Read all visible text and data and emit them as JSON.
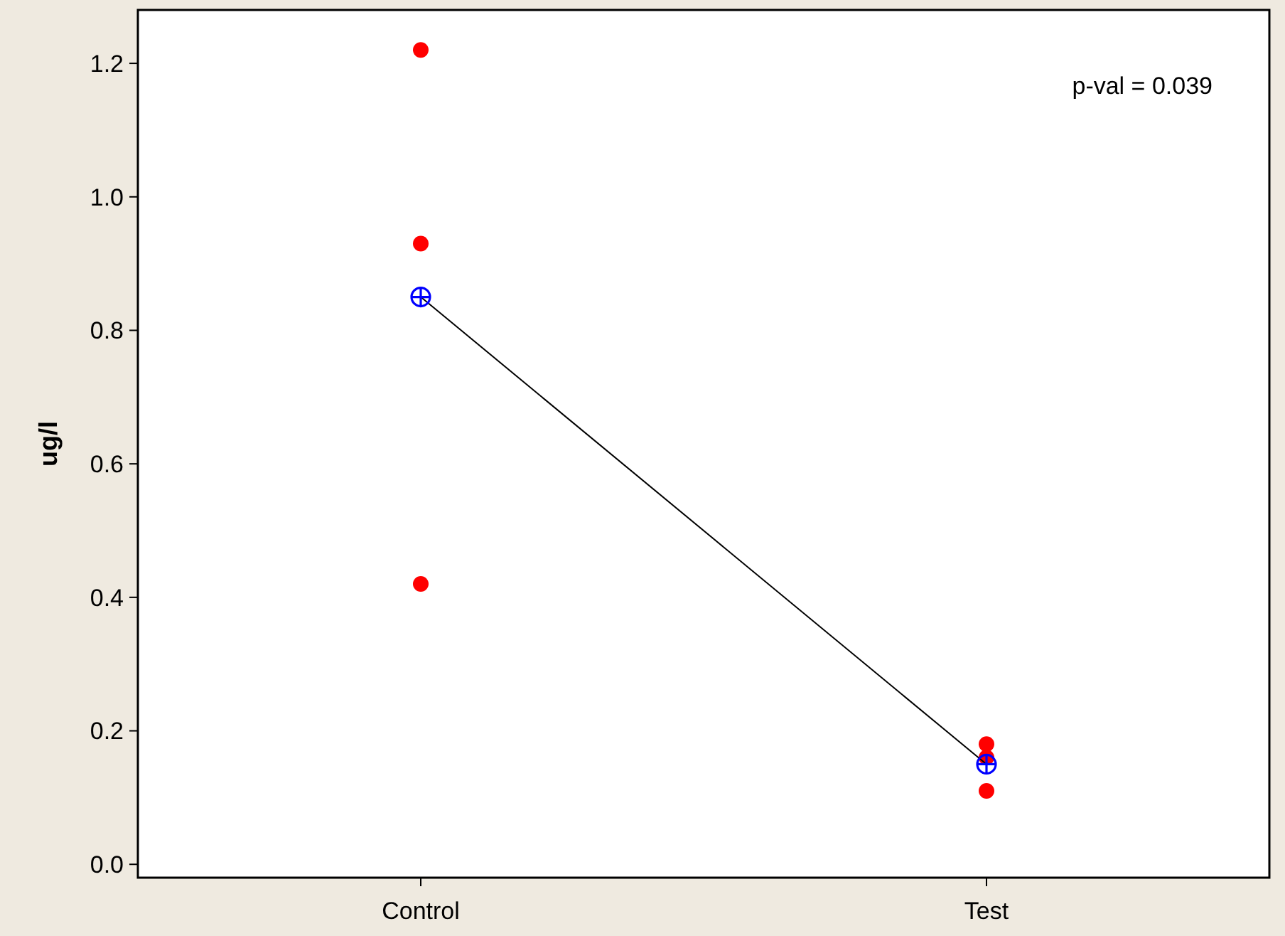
{
  "chart_data": {
    "type": "scatter",
    "ylabel": "ug/l",
    "categories": [
      "Control",
      "Test"
    ],
    "ylim": [
      -0.02,
      1.28
    ],
    "yticks": [
      {
        "value": 0,
        "label": "0.0"
      },
      0.2,
      0.4,
      0.6,
      0.8,
      {
        "value": 1,
        "label": "1.0"
      },
      1.2
    ],
    "grid": false,
    "annotations": [
      "p-val = 0.039"
    ],
    "series": [
      {
        "color": "#ff0000",
        "marker": "circle",
        "x": [
          "Control",
          "Control",
          "Control",
          "Test",
          "Test",
          "Test"
        ],
        "values": [
          1.22,
          0.93,
          0.42,
          0.18,
          0.16,
          0.11
        ]
      },
      {
        "type": "line",
        "color": "#000000",
        "marker": "none",
        "x": [
          "Control",
          "Test"
        ],
        "values": [
          0.85,
          0.15
        ]
      },
      {
        "color": "#0000ff",
        "marker": "cross",
        "x": [
          "Control",
          "Test"
        ],
        "values": [
          0.85,
          0.15
        ]
      }
    ]
  }
}
